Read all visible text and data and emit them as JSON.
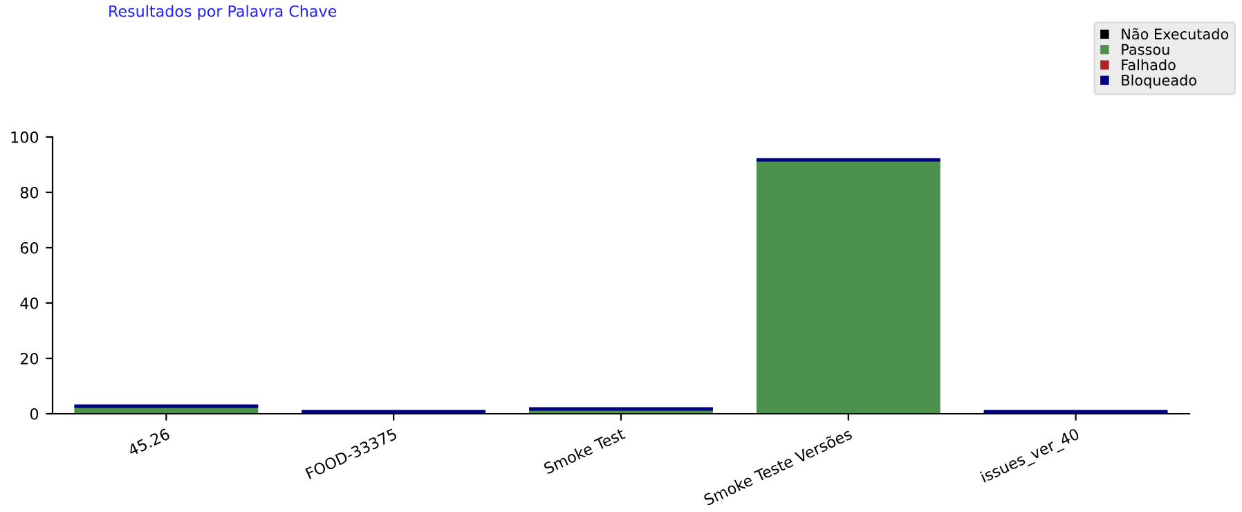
{
  "chart_data": {
    "type": "bar",
    "title": "Resultados por Palavra Chave",
    "stacked": true,
    "categories": [
      "45.26",
      "FOOD-33375",
      "Smoke Test",
      "Smoke Teste Versões",
      "issues_ver_40"
    ],
    "series": [
      {
        "name": "Não Executado",
        "color": "#000000",
        "values": [
          0,
          0,
          0,
          0,
          0
        ]
      },
      {
        "name": "Passou",
        "color": "#4c924c",
        "values": [
          2.5,
          0.5,
          1.5,
          91.5,
          0.5
        ]
      },
      {
        "name": "Falhado",
        "color": "#b22222",
        "values": [
          0,
          0,
          0,
          0,
          0
        ]
      },
      {
        "name": "Bloqueado",
        "color": "#000080",
        "values": [
          0.5,
          0.5,
          0.5,
          0.5,
          0.5
        ]
      }
    ],
    "ylim": [
      0,
      100
    ],
    "yticks": [
      0,
      20,
      40,
      60,
      80,
      100
    ],
    "grid": false,
    "legend": "top right"
  }
}
